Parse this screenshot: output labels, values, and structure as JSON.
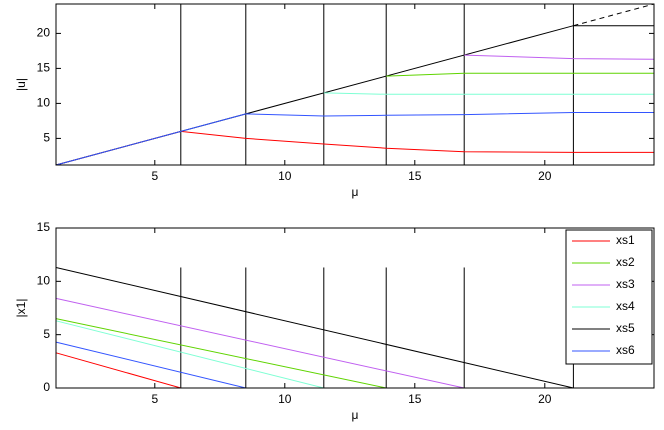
{
  "chart_data": [
    {
      "type": "line",
      "xlabel": "μ",
      "ylabel": "|u|",
      "xlim": [
        1.2,
        24.2
      ],
      "ylim": [
        1.2,
        24.2
      ],
      "xticks": [
        5,
        10,
        15,
        20
      ],
      "yticks": [
        5,
        10,
        15,
        20
      ],
      "vlines": [
        6,
        8.5,
        11.5,
        13.9,
        16.9,
        21.1
      ],
      "series": [
        {
          "color": "#ff0000",
          "x": [
            1.2,
            6,
            8.5,
            11.5,
            13.9,
            16.9,
            21.1,
            24.2
          ],
          "values": [
            1.2,
            6,
            5.0,
            4.2,
            3.6,
            3.1,
            3.0,
            3.0
          ]
        },
        {
          "color": "#000000",
          "x": [
            1.2,
            21.1,
            24.2
          ],
          "values": [
            1.2,
            21.1,
            21.1
          ]
        },
        {
          "color": "#000000",
          "dash": true,
          "x": [
            21.1,
            24.2
          ],
          "values": [
            21.1,
            24.2
          ]
        },
        {
          "color": "#7fffd4",
          "x": [
            11.5,
            13.9,
            24.2
          ],
          "values": [
            11.5,
            11.3,
            11.3
          ]
        },
        {
          "color": "#5fd400",
          "x": [
            13.9,
            16.9,
            24.2
          ],
          "values": [
            13.9,
            14.3,
            14.3
          ]
        },
        {
          "color": "#c060f0",
          "x": [
            16.9,
            21.1,
            24.2
          ],
          "values": [
            16.9,
            16.4,
            16.3
          ]
        },
        {
          "color": "#3355ff",
          "x": [
            1.2,
            6,
            8.5,
            11.5,
            13.9,
            16.9,
            21.1,
            24.2
          ],
          "values": [
            1.2,
            6,
            8.5,
            8.2,
            8.3,
            8.4,
            8.7,
            8.7
          ]
        }
      ]
    },
    {
      "type": "line",
      "xlabel": "μ",
      "ylabel": "|x1|",
      "xlim": [
        1.2,
        24.2
      ],
      "ylim": [
        0,
        15
      ],
      "xticks": [
        5,
        10,
        15,
        20
      ],
      "yticks": [
        0,
        5,
        10,
        15
      ],
      "vlines": [
        6,
        8.5,
        11.5,
        13.9,
        16.9,
        21.1
      ],
      "vline_top": 11.3,
      "legend": "upper right",
      "series": [
        {
          "name": "xs1",
          "color": "#ff0000",
          "x": [
            1.2,
            6,
            24.2
          ],
          "values": [
            3.3,
            0,
            0
          ]
        },
        {
          "name": "xs2",
          "color": "#5fd400",
          "x": [
            1.2,
            13.9,
            24.2
          ],
          "values": [
            6.5,
            0,
            0
          ]
        },
        {
          "name": "xs3",
          "color": "#c060f0",
          "x": [
            1.2,
            16.9,
            24.2
          ],
          "values": [
            8.4,
            0,
            0
          ]
        },
        {
          "name": "xs4",
          "color": "#7fffd4",
          "x": [
            1.2,
            11.5,
            24.2
          ],
          "values": [
            6.3,
            0,
            0
          ]
        },
        {
          "name": "xs5",
          "color": "#000000",
          "x": [
            1.2,
            21.1,
            24.2
          ],
          "values": [
            11.3,
            0,
            0
          ]
        },
        {
          "name": "xs6",
          "color": "#3355ff",
          "x": [
            1.2,
            8.5,
            24.2
          ],
          "values": [
            4.3,
            0,
            0
          ]
        }
      ]
    }
  ]
}
